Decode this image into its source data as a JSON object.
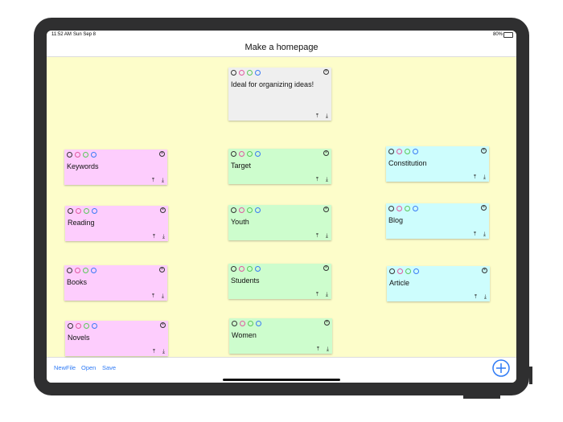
{
  "status_bar": {
    "time": "11:52 AM",
    "date": "Sun Sep 8",
    "battery": "80%"
  },
  "nav": {
    "title": "Make a homepage"
  },
  "notes": [
    {
      "text": "Ideal for organizing ideas!",
      "color": "#efefef"
    },
    {
      "text": "Keywords",
      "color": "#fdcdfd"
    },
    {
      "text": "Reading",
      "color": "#fdcdfd"
    },
    {
      "text": "Books",
      "color": "#fdcdfd"
    },
    {
      "text": "Novels",
      "color": "#fdcdfd"
    },
    {
      "text": "Target",
      "color": "#cdfdcd"
    },
    {
      "text": "Youth",
      "color": "#cdfdcd"
    },
    {
      "text": "Students",
      "color": "#cdfdcd"
    },
    {
      "text": "Women",
      "color": "#cdfdcd"
    },
    {
      "text": "Constitution",
      "color": "#cdfdfd"
    },
    {
      "text": "Blog",
      "color": "#cdfdfd"
    },
    {
      "text": "Article",
      "color": "#cdfdfd"
    }
  ],
  "toolbar": {
    "buttons": [
      "NewFile",
      "Open",
      "Save"
    ]
  }
}
